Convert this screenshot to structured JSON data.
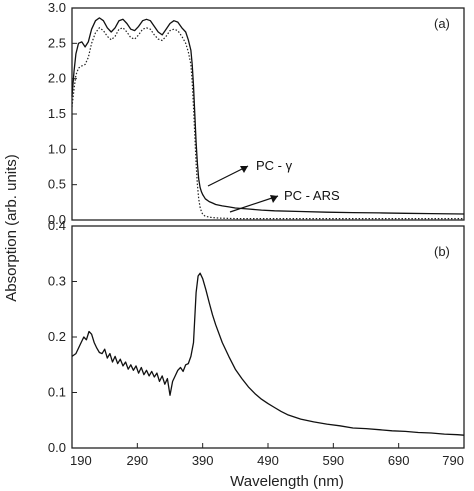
{
  "chart_data": [
    {
      "panel": "a",
      "type": "line",
      "panel_label": "(a)",
      "xlim": [
        190,
        790
      ],
      "ylim": [
        0,
        3.0
      ],
      "y_ticks": [
        "0.0",
        "0.5",
        "1.0",
        "1.5",
        "2.0",
        "2.5",
        "3.0"
      ],
      "y_tick_values": [
        0,
        0.5,
        1.0,
        1.5,
        2.0,
        2.5,
        3.0
      ],
      "annotations": [
        {
          "text": "PC - γ",
          "series": "PC - γ"
        },
        {
          "text": "PC - ARS",
          "series": "PC - ARS"
        }
      ],
      "series": [
        {
          "name": "PC - γ",
          "style": "solid",
          "color": "#111111",
          "x": [
            190,
            193,
            196,
            200,
            205,
            210,
            215,
            220,
            226,
            232,
            238,
            244,
            250,
            256,
            262,
            268,
            274,
            280,
            286,
            292,
            298,
            304,
            310,
            316,
            322,
            328,
            334,
            340,
            346,
            352,
            358,
            364,
            368,
            372,
            374,
            376,
            378,
            380,
            382,
            384,
            386,
            388,
            390,
            392,
            394,
            397,
            400,
            405,
            410,
            420,
            430,
            440,
            460,
            480,
            500,
            540,
            580,
            620,
            660,
            700,
            740,
            790
          ],
          "y": [
            1.75,
            2.1,
            2.35,
            2.5,
            2.52,
            2.45,
            2.52,
            2.7,
            2.82,
            2.86,
            2.82,
            2.72,
            2.66,
            2.72,
            2.82,
            2.84,
            2.78,
            2.7,
            2.68,
            2.74,
            2.82,
            2.84,
            2.82,
            2.74,
            2.66,
            2.62,
            2.7,
            2.78,
            2.82,
            2.8,
            2.72,
            2.66,
            2.55,
            2.4,
            2.2,
            1.9,
            1.5,
            1.1,
            0.8,
            0.58,
            0.46,
            0.4,
            0.36,
            0.33,
            0.3,
            0.28,
            0.26,
            0.24,
            0.22,
            0.2,
            0.185,
            0.17,
            0.155,
            0.14,
            0.13,
            0.12,
            0.11,
            0.105,
            0.1,
            0.095,
            0.09,
            0.085
          ]
        },
        {
          "name": "PC - ARS",
          "style": "dotted",
          "color": "#222222",
          "x": [
            190,
            193,
            196,
            200,
            205,
            210,
            215,
            220,
            226,
            232,
            238,
            244,
            250,
            256,
            262,
            268,
            274,
            280,
            286,
            292,
            298,
            304,
            310,
            316,
            322,
            328,
            334,
            340,
            346,
            352,
            358,
            364,
            368,
            372,
            374,
            376,
            378,
            380,
            382,
            384,
            386,
            388,
            390,
            393,
            396,
            400,
            405,
            410,
            420,
            430,
            440,
            460,
            480,
            500,
            540,
            580,
            620,
            660,
            700,
            740,
            790
          ],
          "y": [
            1.6,
            1.85,
            2.05,
            2.15,
            2.18,
            2.2,
            2.3,
            2.5,
            2.65,
            2.72,
            2.68,
            2.6,
            2.55,
            2.6,
            2.7,
            2.72,
            2.66,
            2.58,
            2.56,
            2.62,
            2.7,
            2.72,
            2.7,
            2.62,
            2.56,
            2.54,
            2.6,
            2.68,
            2.7,
            2.68,
            2.6,
            2.5,
            2.38,
            2.2,
            1.95,
            1.6,
            1.2,
            0.8,
            0.5,
            0.3,
            0.18,
            0.12,
            0.08,
            0.06,
            0.05,
            0.04,
            0.035,
            0.03,
            0.025,
            0.022,
            0.02,
            0.02,
            0.02,
            0.02,
            0.02,
            0.02,
            0.02,
            0.02,
            0.02,
            0.02,
            0.02
          ]
        }
      ]
    },
    {
      "panel": "b",
      "type": "line",
      "panel_label": "(b)",
      "xlim": [
        190,
        790
      ],
      "ylim": [
        0,
        0.4
      ],
      "y_ticks": [
        "0.0",
        "0.1",
        "0.2",
        "0.3",
        "0.4"
      ],
      "y_tick_values": [
        0,
        0.1,
        0.2,
        0.3,
        0.4
      ],
      "x_ticks": [
        "190",
        "290",
        "390",
        "490",
        "590",
        "690",
        "790"
      ],
      "x_tick_values": [
        190,
        290,
        390,
        490,
        590,
        690,
        790
      ],
      "xlabel": "Wavelength (nm)",
      "series": [
        {
          "style": "solid",
          "color": "#111111",
          "x": [
            190,
            196,
            200,
            204,
            208,
            212,
            216,
            220,
            224,
            228,
            232,
            236,
            240,
            244,
            248,
            252,
            256,
            260,
            264,
            268,
            272,
            276,
            280,
            284,
            288,
            292,
            296,
            300,
            304,
            308,
            312,
            316,
            320,
            324,
            328,
            332,
            336,
            340,
            344,
            348,
            352,
            356,
            360,
            364,
            368,
            372,
            376,
            380,
            383,
            386,
            390,
            395,
            400,
            405,
            410,
            420,
            430,
            440,
            450,
            460,
            470,
            480,
            490,
            500,
            510,
            520,
            540,
            560,
            580,
            600,
            620,
            640,
            660,
            680,
            700,
            720,
            740,
            760,
            780,
            790
          ],
          "y": [
            0.165,
            0.17,
            0.18,
            0.19,
            0.2,
            0.195,
            0.21,
            0.205,
            0.19,
            0.18,
            0.172,
            0.17,
            0.178,
            0.162,
            0.17,
            0.155,
            0.165,
            0.152,
            0.16,
            0.148,
            0.155,
            0.142,
            0.15,
            0.14,
            0.148,
            0.135,
            0.145,
            0.132,
            0.14,
            0.13,
            0.138,
            0.128,
            0.135,
            0.12,
            0.13,
            0.115,
            0.125,
            0.095,
            0.12,
            0.13,
            0.14,
            0.145,
            0.138,
            0.15,
            0.152,
            0.165,
            0.19,
            0.28,
            0.31,
            0.315,
            0.305,
            0.285,
            0.262,
            0.24,
            0.222,
            0.19,
            0.165,
            0.142,
            0.125,
            0.11,
            0.098,
            0.088,
            0.08,
            0.073,
            0.066,
            0.06,
            0.052,
            0.047,
            0.043,
            0.04,
            0.036,
            0.035,
            0.033,
            0.031,
            0.03,
            0.028,
            0.027,
            0.025,
            0.024,
            0.023
          ]
        }
      ]
    }
  ],
  "ylabel": "Absorption (arb. units)"
}
